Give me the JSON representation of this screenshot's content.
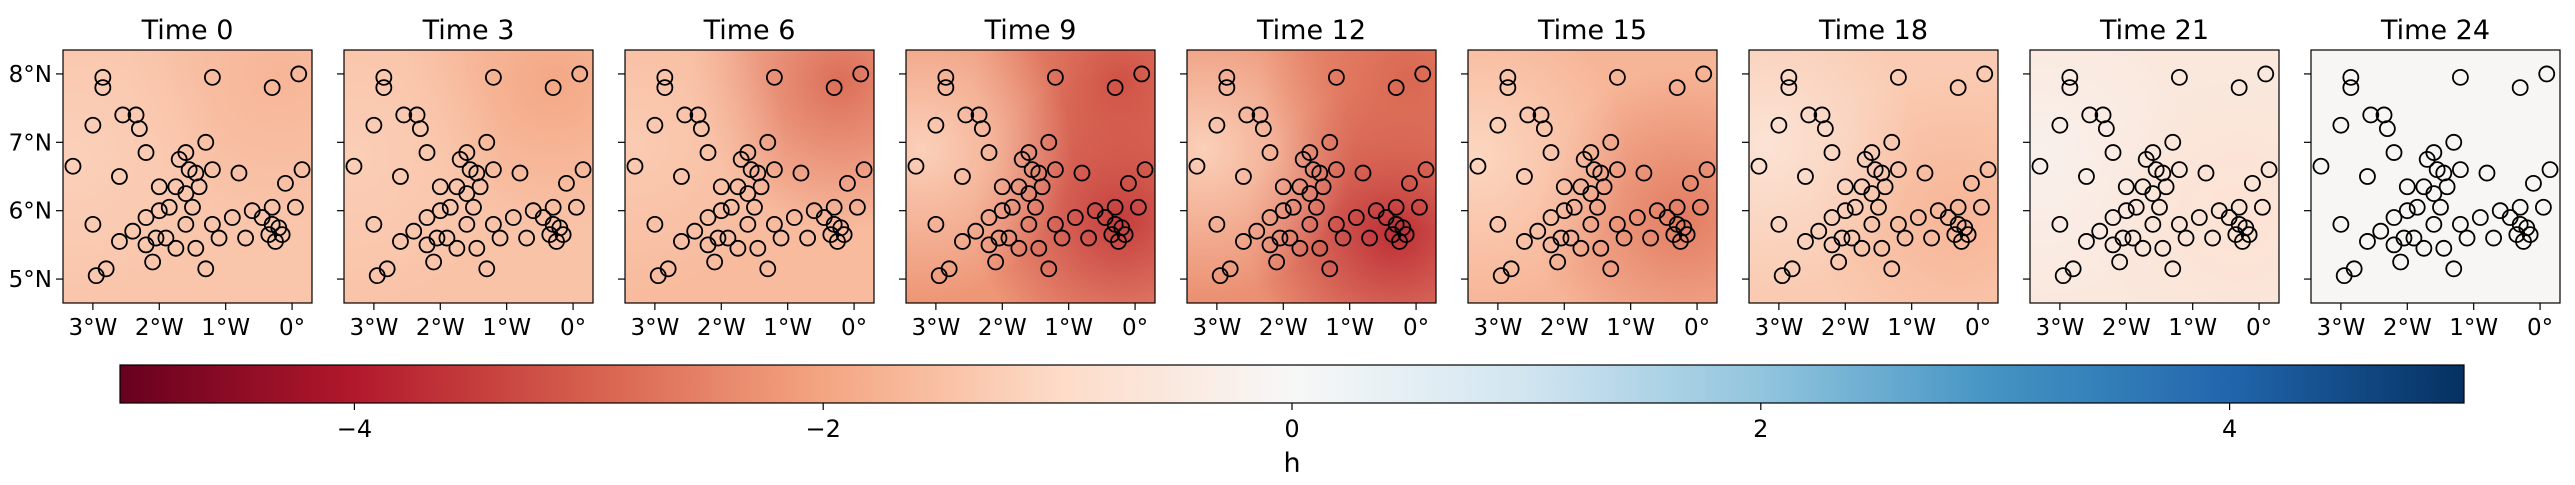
{
  "chart_data": {
    "type": "heatmap",
    "description_panels": "small multiples of a spatial field with station markers",
    "panels": [
      {
        "title": "Time 0",
        "value": -1.4,
        "hotspots": [
          [
            -0.2,
            8.0,
            -0.3
          ],
          [
            -3.3,
            6.8,
            0.2
          ]
        ]
      },
      {
        "title": "Time 3",
        "value": -1.45,
        "hotspots": [
          [
            -0.3,
            7.9,
            -0.5
          ],
          [
            -3.3,
            6.8,
            0.2
          ]
        ]
      },
      {
        "title": "Time 6",
        "value": -1.6,
        "hotspots": [
          [
            -0.2,
            7.9,
            -1.2
          ],
          [
            -3.3,
            7.0,
            0.3
          ]
        ]
      },
      {
        "title": "Time 9",
        "value": -2.2,
        "hotspots": [
          [
            -0.2,
            5.9,
            -1.3
          ],
          [
            -0.2,
            7.9,
            -1.0
          ],
          [
            -3.2,
            6.9,
            1.0
          ]
        ]
      },
      {
        "title": "Time 12",
        "value": -2.3,
        "hotspots": [
          [
            -0.3,
            5.7,
            -1.4
          ],
          [
            -3.2,
            6.9,
            1.1
          ],
          [
            -0.1,
            7.9,
            -0.6
          ]
        ]
      },
      {
        "title": "Time 15",
        "value": -1.7,
        "hotspots": [
          [
            -0.2,
            5.9,
            -0.9
          ],
          [
            -3.3,
            6.8,
            0.6
          ]
        ]
      },
      {
        "title": "Time 18",
        "value": -1.3,
        "hotspots": [
          [
            -0.3,
            5.9,
            -0.4
          ],
          [
            -3.2,
            7.0,
            0.6
          ]
        ]
      },
      {
        "title": "Time 21",
        "value": -0.55,
        "hotspots": [
          [
            -3.3,
            6.8,
            0.3
          ],
          [
            -0.3,
            5.9,
            -0.2
          ]
        ]
      },
      {
        "title": "Time 24",
        "value": -0.05,
        "hotspots": []
      }
    ],
    "stations": [
      [
        -2.85,
        7.95
      ],
      [
        -2.85,
        7.8
      ],
      [
        -2.55,
        7.4
      ],
      [
        -2.35,
        7.4
      ],
      [
        -2.3,
        7.2
      ],
      [
        -1.2,
        7.95
      ],
      [
        -0.3,
        7.8
      ],
      [
        0.1,
        8.0
      ],
      [
        -3.0,
        7.25
      ],
      [
        -3.3,
        6.65
      ],
      [
        -2.2,
        6.85
      ],
      [
        -1.7,
        6.75
      ],
      [
        -1.55,
        6.6
      ],
      [
        -1.6,
        6.85
      ],
      [
        -1.3,
        7.0
      ],
      [
        -1.45,
        6.55
      ],
      [
        -1.4,
        6.35
      ],
      [
        -1.2,
        6.6
      ],
      [
        -0.8,
        6.55
      ],
      [
        -2.6,
        6.5
      ],
      [
        -2.0,
        6.35
      ],
      [
        -1.75,
        6.35
      ],
      [
        -1.6,
        6.25
      ],
      [
        -1.5,
        6.05
      ],
      [
        -1.85,
        6.05
      ],
      [
        -2.0,
        6.0
      ],
      [
        -2.2,
        5.9
      ],
      [
        -2.4,
        5.7
      ],
      [
        -2.2,
        5.5
      ],
      [
        -2.05,
        5.6
      ],
      [
        -1.9,
        5.6
      ],
      [
        -1.6,
        5.8
      ],
      [
        -1.2,
        5.8
      ],
      [
        -0.6,
        6.0
      ],
      [
        -0.9,
        5.9
      ],
      [
        -0.45,
        5.9
      ],
      [
        -0.3,
        6.05
      ],
      [
        -0.1,
        6.4
      ],
      [
        0.15,
        6.6
      ],
      [
        -0.3,
        5.8
      ],
      [
        -0.35,
        5.65
      ],
      [
        -0.25,
        5.55
      ],
      [
        -0.15,
        5.65
      ],
      [
        -0.2,
        5.75
      ],
      [
        -0.7,
        5.6
      ],
      [
        -1.1,
        5.6
      ],
      [
        -1.45,
        5.45
      ],
      [
        -1.75,
        5.45
      ],
      [
        -2.6,
        5.55
      ],
      [
        -2.8,
        5.15
      ],
      [
        -2.95,
        5.05
      ],
      [
        -3.0,
        5.8
      ],
      [
        -1.3,
        5.15
      ],
      [
        0.05,
        6.05
      ],
      [
        -2.1,
        5.25
      ]
    ],
    "x_ticks": [
      "3°W",
      "2°W",
      "1°W",
      "0°"
    ],
    "x_tick_values": [
      -3,
      -2,
      -1,
      0
    ],
    "y_ticks": [
      "8°N",
      "7°N",
      "6°N",
      "5°N"
    ],
    "y_tick_values": [
      8,
      7,
      6,
      5
    ],
    "xlim": [
      -3.45,
      0.3
    ],
    "ylim": [
      4.65,
      8.35
    ],
    "colorbar": {
      "label": "h",
      "colormap": "RdBu",
      "vmin": -5.0,
      "vmax": 5.0,
      "ticks": [
        -4,
        -2,
        0,
        2,
        4
      ],
      "tick_labels": [
        "−4",
        "−2",
        "0",
        "2",
        "4"
      ]
    },
    "marker_style": {
      "fill": "none",
      "edge": "#000000"
    }
  }
}
